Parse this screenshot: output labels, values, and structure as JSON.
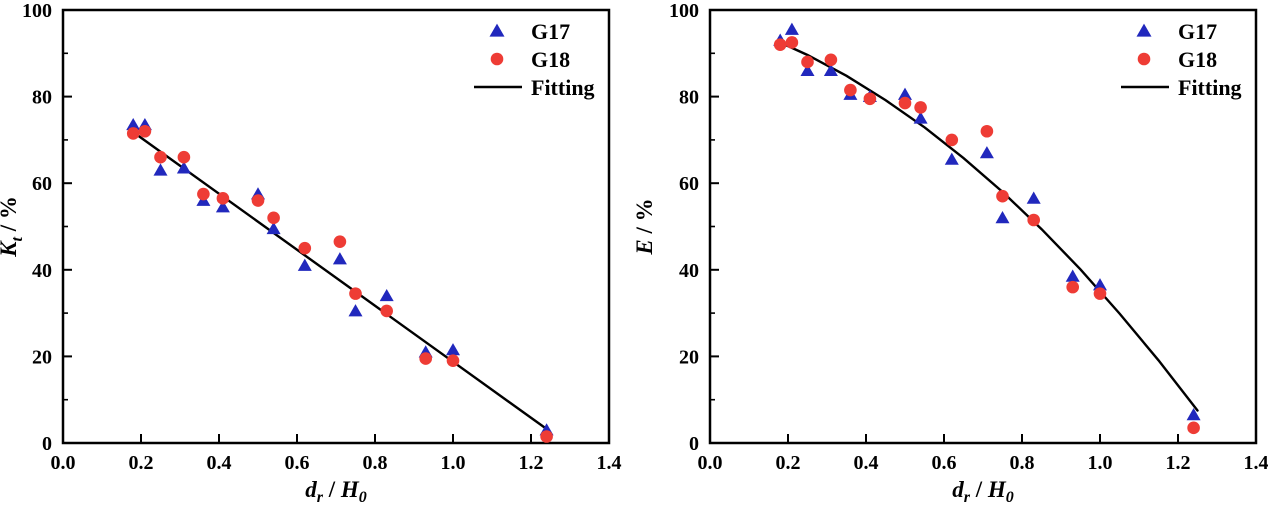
{
  "figure": {
    "background": "#ffffff",
    "axis_color": "#000000",
    "colors": {
      "g17": "#2128bd",
      "g18": "#ee3c35",
      "fitting": "#000000"
    },
    "legend_labels": [
      "G17",
      "G18",
      "Fitting"
    ]
  },
  "chart_data": [
    {
      "type": "scatter",
      "panel": "left",
      "title": "",
      "xlabel": {
        "sym1": "d",
        "sub1": "r",
        "divider": " / ",
        "sym2": "H",
        "sub2": "0"
      },
      "ylabel": {
        "symbol": "K",
        "symbol_sub": "t",
        "suffix": " / %"
      },
      "xlim": [
        0.0,
        1.4
      ],
      "ylim": [
        0,
        100
      ],
      "xticks": [
        "0.0",
        "0.2",
        "0.4",
        "0.6",
        "0.8",
        "1.0",
        "1.2",
        "1.4"
      ],
      "yticks": [
        "0",
        "20",
        "40",
        "60",
        "80",
        "100"
      ],
      "y_minor_step": 10,
      "grid": false,
      "legend_position": "top-right",
      "series": [
        {
          "name": "G17",
          "marker": "triangle",
          "color": "#2128bd",
          "points": [
            [
              0.18,
              73.5
            ],
            [
              0.21,
              73.5
            ],
            [
              0.25,
              63
            ],
            [
              0.31,
              63.5
            ],
            [
              0.36,
              56
            ],
            [
              0.41,
              54.5
            ],
            [
              0.5,
              57.5
            ],
            [
              0.54,
              49.5
            ],
            [
              0.62,
              41
            ],
            [
              0.71,
              42.5
            ],
            [
              0.75,
              30.5
            ],
            [
              0.83,
              34
            ],
            [
              0.93,
              21
            ],
            [
              1.0,
              21.5
            ],
            [
              1.24,
              3
            ]
          ]
        },
        {
          "name": "G18",
          "marker": "circle",
          "color": "#ee3c35",
          "points": [
            [
              0.18,
              71.5
            ],
            [
              0.21,
              72
            ],
            [
              0.25,
              66
            ],
            [
              0.31,
              66
            ],
            [
              0.36,
              57.5
            ],
            [
              0.41,
              56.5
            ],
            [
              0.5,
              56
            ],
            [
              0.54,
              52
            ],
            [
              0.62,
              45
            ],
            [
              0.71,
              46.5
            ],
            [
              0.75,
              34.5
            ],
            [
              0.83,
              30.5
            ],
            [
              0.93,
              19.5
            ],
            [
              1.0,
              19
            ],
            [
              1.24,
              1.5
            ]
          ]
        },
        {
          "name": "Fitting",
          "marker": "none",
          "line": true,
          "color": "#000000",
          "points": [
            [
              0.18,
              71.8
            ],
            [
              1.245,
              2.9
            ]
          ]
        }
      ]
    },
    {
      "type": "scatter",
      "panel": "right",
      "title": "",
      "xlabel": {
        "sym1": "d",
        "sub1": "r",
        "divider": " / ",
        "sym2": "H",
        "sub2": "0"
      },
      "ylabel": {
        "symbol": "E",
        "symbol_sub": "",
        "suffix": " / %"
      },
      "xlim": [
        0.0,
        1.4
      ],
      "ylim": [
        0,
        100
      ],
      "xticks": [
        "0.0",
        "0.2",
        "0.4",
        "0.6",
        "0.8",
        "1.0",
        "1.2",
        "1.4"
      ],
      "yticks": [
        "0",
        "20",
        "40",
        "60",
        "80",
        "100"
      ],
      "y_minor_step": 10,
      "grid": false,
      "legend_position": "top-right",
      "series": [
        {
          "name": "G17",
          "marker": "triangle",
          "color": "#2128bd",
          "points": [
            [
              0.18,
              93
            ],
            [
              0.21,
              95.5
            ],
            [
              0.25,
              86
            ],
            [
              0.31,
              86
            ],
            [
              0.36,
              80.5
            ],
            [
              0.41,
              80
            ],
            [
              0.5,
              80.5
            ],
            [
              0.54,
              75
            ],
            [
              0.62,
              65.5
            ],
            [
              0.71,
              67
            ],
            [
              0.75,
              52
            ],
            [
              0.83,
              56.5
            ],
            [
              0.93,
              38.5
            ],
            [
              1.0,
              36.5
            ],
            [
              1.24,
              6.5
            ]
          ]
        },
        {
          "name": "G18",
          "marker": "circle",
          "color": "#ee3c35",
          "points": [
            [
              0.18,
              92
            ],
            [
              0.21,
              92.5
            ],
            [
              0.25,
              88
            ],
            [
              0.31,
              88.5
            ],
            [
              0.36,
              81.5
            ],
            [
              0.41,
              79.5
            ],
            [
              0.5,
              78.5
            ],
            [
              0.54,
              77.5
            ],
            [
              0.62,
              70
            ],
            [
              0.71,
              72
            ],
            [
              0.75,
              57
            ],
            [
              0.83,
              51.5
            ],
            [
              0.93,
              36
            ],
            [
              1.0,
              34.5
            ],
            [
              1.24,
              3.5
            ]
          ]
        },
        {
          "name": "Fitting",
          "marker": "none",
          "line": true,
          "color": "#000000",
          "points": [
            [
              0.175,
              92.7
            ],
            [
              0.25,
              89.6
            ],
            [
              0.35,
              84.8
            ],
            [
              0.45,
              79.2
            ],
            [
              0.55,
              72.9
            ],
            [
              0.65,
              65.8
            ],
            [
              0.75,
              58.0
            ],
            [
              0.85,
              49.4
            ],
            [
              0.95,
              40.1
            ],
            [
              1.05,
              29.9
            ],
            [
              1.15,
              19.1
            ],
            [
              1.25,
              7.5
            ]
          ]
        }
      ]
    }
  ]
}
